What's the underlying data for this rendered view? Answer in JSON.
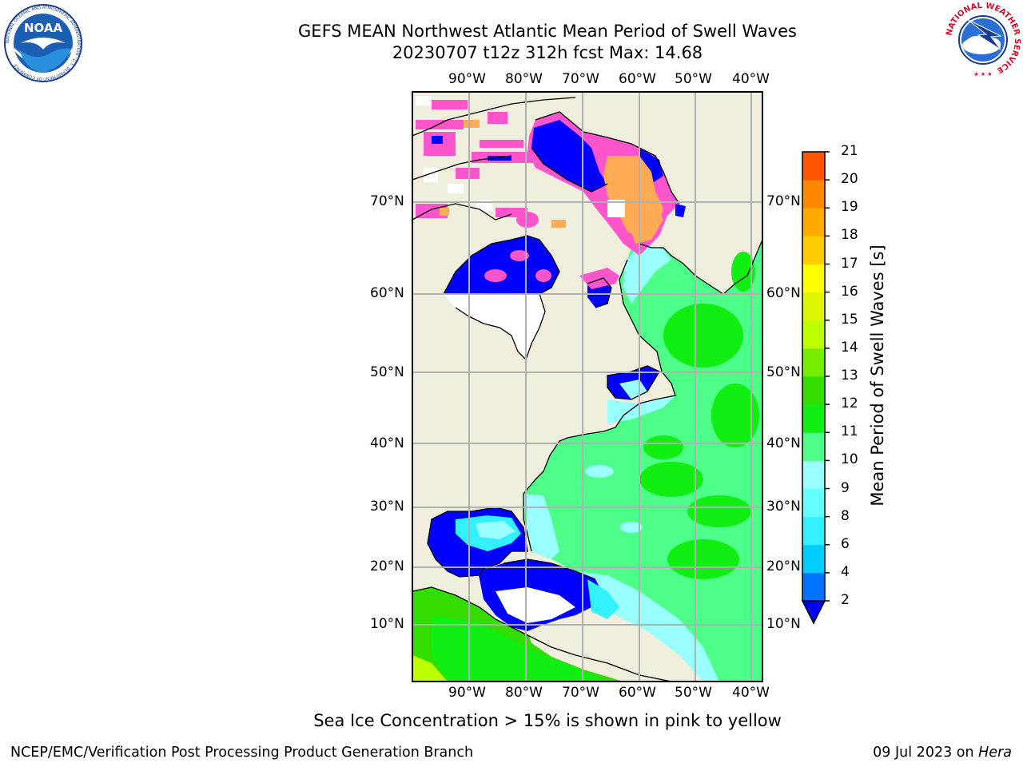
{
  "title_line1": "GEFS MEAN Northwest Atlantic Mean Period of Swell Waves",
  "title_line2": "20230707 t12z 312h fcst   Max: 14.68",
  "lon_labels": [
    "90°W",
    "80°W",
    "70°W",
    "60°W",
    "50°W",
    "40°W"
  ],
  "lat_labels": [
    "70°N",
    "60°N",
    "50°N",
    "40°N",
    "30°N",
    "20°N",
    "10°N"
  ],
  "colorbar": {
    "title": "Mean Period of Swell Waves [s]",
    "ticks": [
      "2",
      "4",
      "6",
      "8",
      "9",
      "10",
      "11",
      "12",
      "13",
      "14",
      "15",
      "16",
      "17",
      "18",
      "19",
      "20",
      "21"
    ],
    "colors": [
      "#0073ff",
      "#00ccff",
      "#33f0ff",
      "#66ffff",
      "#99ffff",
      "#4dff88",
      "#11ee11",
      "#33dd00",
      "#77ee00",
      "#bbff00",
      "#ddf500",
      "#ffff00",
      "#ffcc00",
      "#ffaa00",
      "#ff8800",
      "#ff5500",
      "#ff2200",
      "#ff0000"
    ],
    "under_color": "#0000ff"
  },
  "logos": {
    "noaa_text": "NOAA",
    "noaa_ring": "NATIONAL OCEANIC AND ATMOSPHERIC ADMINISTRATION · U.S. DEPARTMENT OF COMMERCE",
    "nws_ring": "NATIONAL WEATHER SERVICE"
  },
  "note": "Sea Ice Concentration > 15% is shown in pink to yellow",
  "footer_left": "NCEP/EMC/Verification Post Processing Product Generation Branch",
  "footer_right_date": "09 Jul 2023 on ",
  "footer_right_host": "Hera",
  "colors": {
    "land": "#f0eedc",
    "ocean_green": "#4dff88",
    "deep_green": "#11ee11",
    "cyan": "#99ffff",
    "blue": "#0000ff",
    "ice_pink": "#ff55cc",
    "ice_orange": "#ffaa55",
    "grid": "#b0b0b0"
  }
}
